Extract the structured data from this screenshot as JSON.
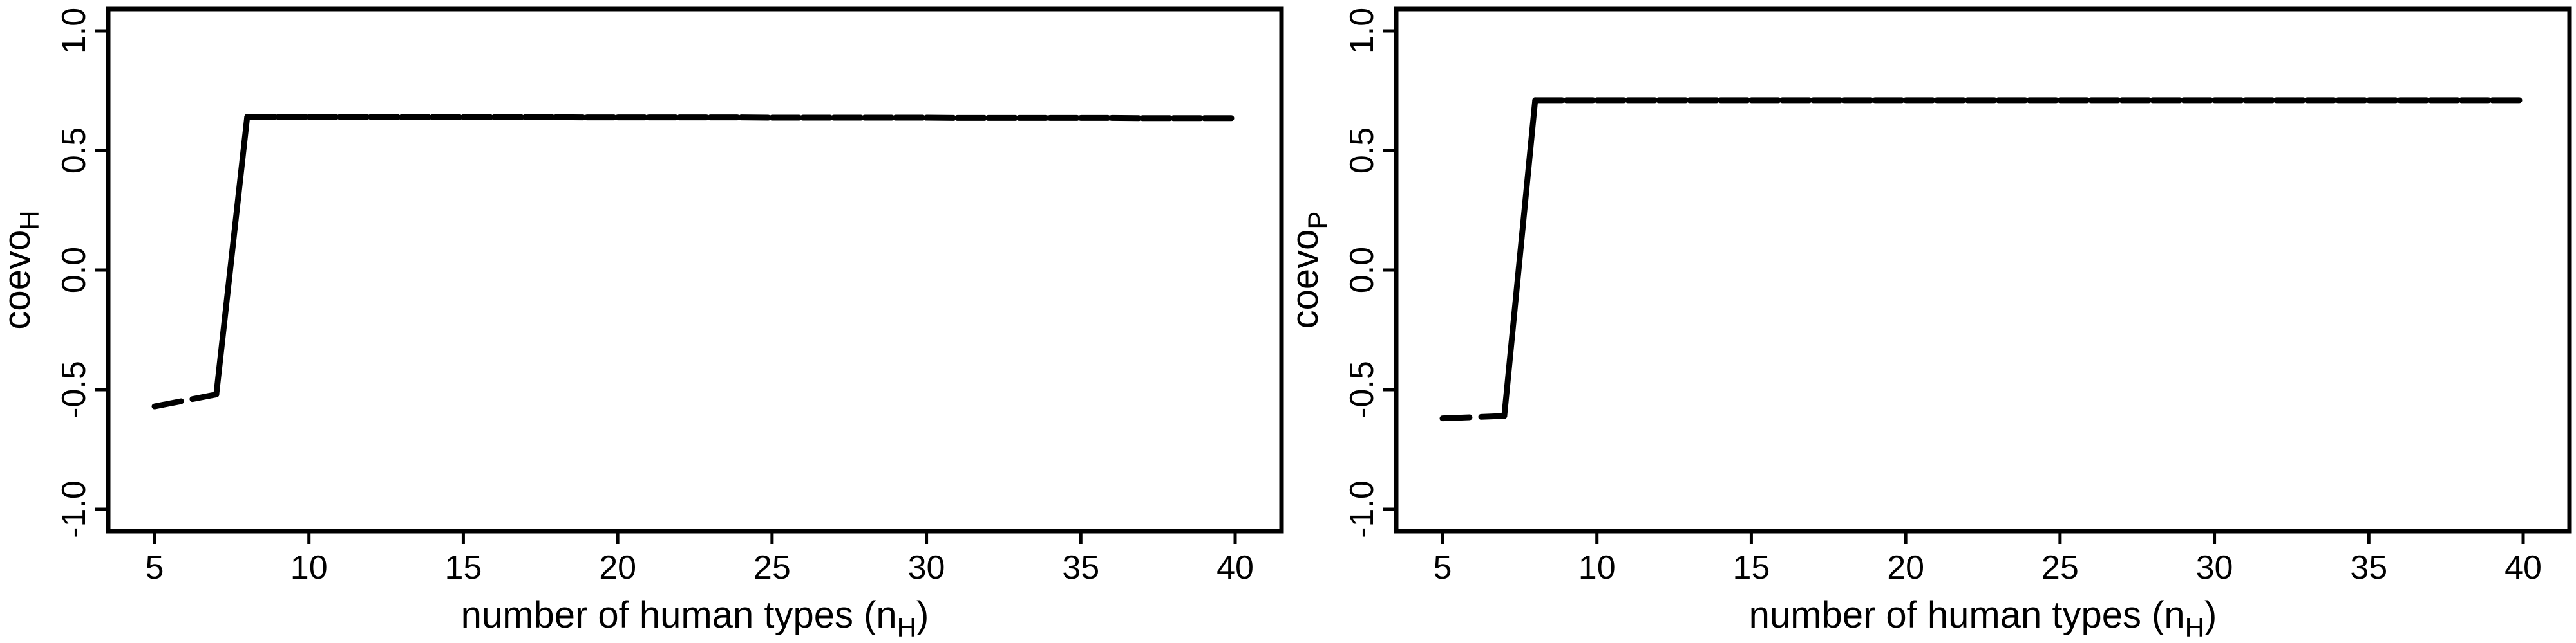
{
  "chart_data": [
    {
      "type": "line",
      "xlabel": "number of human types (n",
      "xlabel_sub": "H",
      "xlabel_tail": ")",
      "ylabel": "coevo",
      "ylabel_sub": "H",
      "xlim": [
        5,
        40
      ],
      "ylim": [
        -1.0,
        1.0
      ],
      "xticks": [
        5,
        10,
        15,
        20,
        25,
        30,
        35,
        40
      ],
      "yticks": [
        -1.0,
        -0.5,
        0.0,
        0.5,
        1.0
      ],
      "ytick_labels": [
        "-1.0",
        "-0.5",
        "0.0",
        "0.5",
        "1.0"
      ],
      "grid": false,
      "series": [
        {
          "x": [
            5,
            7,
            8,
            9,
            10,
            11,
            12,
            13,
            14,
            15,
            16,
            17,
            18,
            19,
            20,
            21,
            22,
            23,
            24,
            25,
            26,
            27,
            28,
            29,
            30,
            31,
            32,
            33,
            34,
            35,
            36,
            37,
            38,
            39,
            40
          ],
          "y": [
            -0.57,
            -0.52,
            0.64,
            0.64,
            0.64,
            0.64,
            0.64,
            0.639,
            0.639,
            0.639,
            0.639,
            0.639,
            0.639,
            0.638,
            0.638,
            0.638,
            0.638,
            0.638,
            0.638,
            0.637,
            0.637,
            0.637,
            0.637,
            0.637,
            0.637,
            0.636,
            0.636,
            0.636,
            0.636,
            0.636,
            0.636,
            0.635,
            0.635,
            0.635,
            0.635
          ],
          "solid_segments": [
            [
              7,
              8
            ]
          ]
        }
      ]
    },
    {
      "type": "line",
      "xlabel": "number of human types (n",
      "xlabel_sub": "H",
      "xlabel_tail": ")",
      "ylabel": "coevo",
      "ylabel_sub": "P",
      "xlim": [
        5,
        40
      ],
      "ylim": [
        -1.0,
        1.0
      ],
      "xticks": [
        5,
        10,
        15,
        20,
        25,
        30,
        35,
        40
      ],
      "yticks": [
        -1.0,
        -0.5,
        0.0,
        0.5,
        1.0
      ],
      "ytick_labels": [
        "-1.0",
        "-0.5",
        "0.0",
        "0.5",
        "1.0"
      ],
      "grid": false,
      "series": [
        {
          "x": [
            5,
            7,
            8,
            9,
            10,
            11,
            12,
            13,
            14,
            15,
            16,
            17,
            18,
            19,
            20,
            21,
            22,
            23,
            24,
            25,
            26,
            27,
            28,
            29,
            30,
            31,
            32,
            33,
            34,
            35,
            36,
            37,
            38,
            39,
            40
          ],
          "y": [
            -0.62,
            -0.61,
            0.71,
            0.71,
            0.71,
            0.71,
            0.71,
            0.71,
            0.71,
            0.71,
            0.71,
            0.71,
            0.71,
            0.71,
            0.71,
            0.71,
            0.71,
            0.71,
            0.71,
            0.71,
            0.71,
            0.71,
            0.71,
            0.71,
            0.71,
            0.71,
            0.71,
            0.71,
            0.71,
            0.71,
            0.71,
            0.71,
            0.71,
            0.71,
            0.71
          ],
          "solid_segments": [
            [
              7,
              8
            ]
          ]
        }
      ]
    }
  ]
}
